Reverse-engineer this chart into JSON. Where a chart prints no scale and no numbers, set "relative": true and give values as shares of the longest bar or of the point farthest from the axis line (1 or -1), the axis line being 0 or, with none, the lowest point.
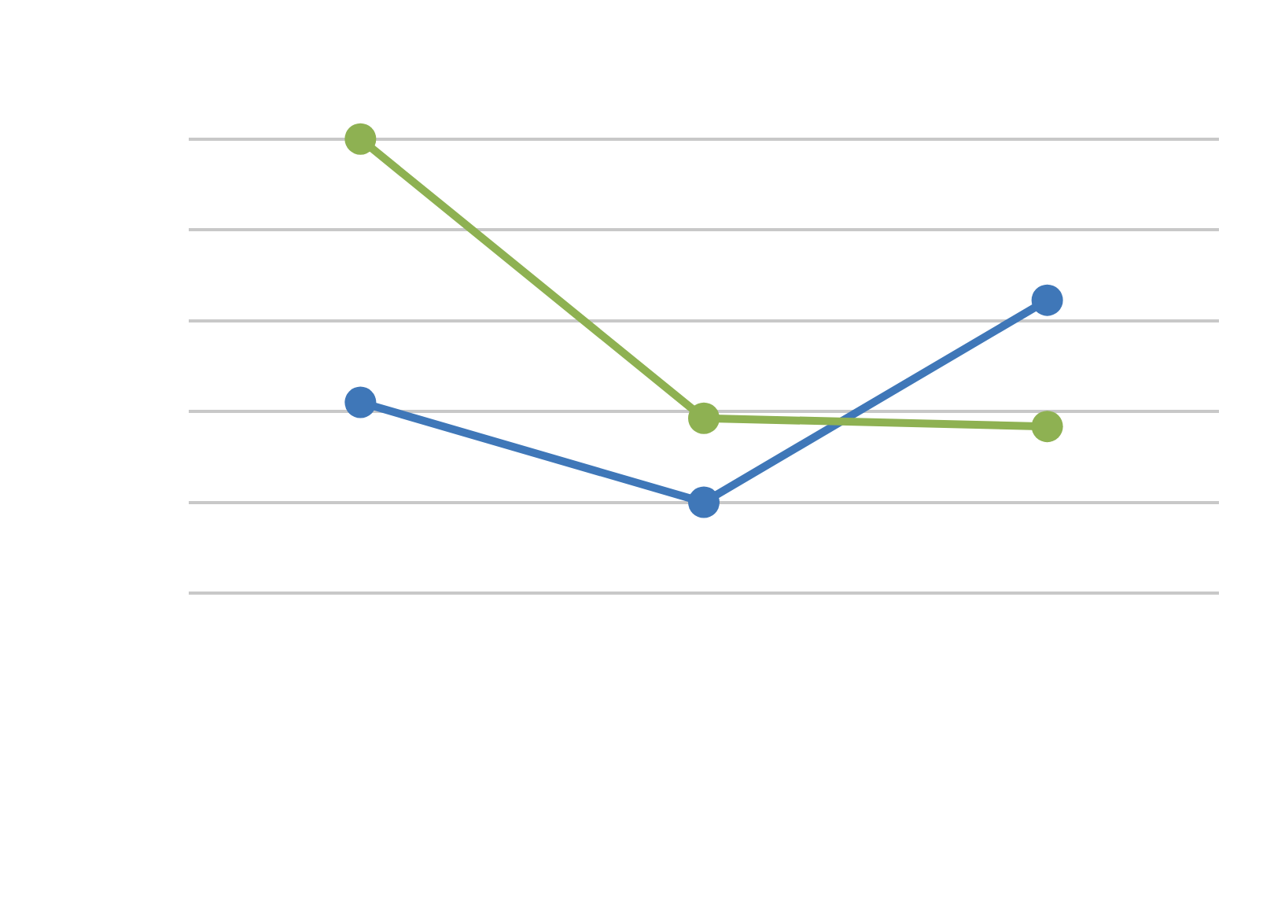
{
  "chart_data": {
    "type": "line",
    "relative": true,
    "categories": [
      null,
      null,
      null
    ],
    "series": [
      {
        "color": "#3f77b8",
        "values": [
          0.42,
          0.2,
          0.645
        ]
      },
      {
        "color": "#8eb152",
        "values": [
          1,
          0.385,
          0.367
        ]
      }
    ],
    "grid": "y",
    "marker": "circle",
    "line_style": "solid"
  }
}
